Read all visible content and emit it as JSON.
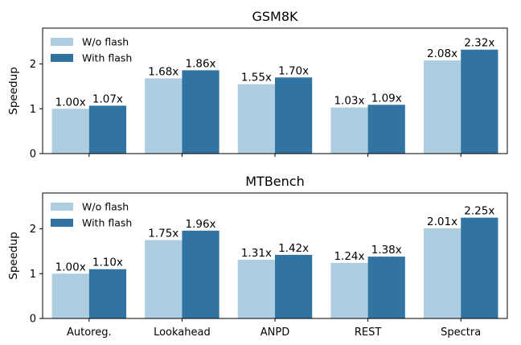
{
  "chart_data": [
    {
      "type": "bar",
      "title": "GSM8K",
      "xlabel": "",
      "ylabel": "Speedup",
      "ylim": [
        0,
        2.8
      ],
      "yticks": [
        "0",
        "1",
        "2"
      ],
      "show_xticklabels": false,
      "categories": [
        "Autoreg.",
        "Lookahead",
        "ANPD",
        "REST",
        "Spectra"
      ],
      "legend": "top-left",
      "grid": false,
      "series": [
        {
          "name": "W/o flash",
          "color": "#aecde1",
          "values": [
            1.0,
            1.68,
            1.55,
            1.03,
            2.08
          ],
          "labels": [
            "1.00x",
            "1.68x",
            "1.55x",
            "1.03x",
            "2.08x"
          ]
        },
        {
          "name": "With flash",
          "color": "#3274a1",
          "values": [
            1.07,
            1.86,
            1.7,
            1.09,
            2.32
          ],
          "labels": [
            "1.07x",
            "1.86x",
            "1.70x",
            "1.09x",
            "2.32x"
          ]
        }
      ]
    },
    {
      "type": "bar",
      "title": "MTBench",
      "xlabel": "",
      "ylabel": "Speedup",
      "ylim": [
        0,
        2.8
      ],
      "yticks": [
        "0",
        "1",
        "2"
      ],
      "show_xticklabels": true,
      "categories": [
        "Autoreg.",
        "Lookahead",
        "ANPD",
        "REST",
        "Spectra"
      ],
      "legend": "top-left",
      "grid": false,
      "series": [
        {
          "name": "W/o flash",
          "color": "#aecde1",
          "values": [
            1.0,
            1.75,
            1.31,
            1.24,
            2.01
          ],
          "labels": [
            "1.00x",
            "1.75x",
            "1.31x",
            "1.24x",
            "2.01x"
          ]
        },
        {
          "name": "With flash",
          "color": "#3274a1",
          "values": [
            1.1,
            1.96,
            1.42,
            1.38,
            2.25
          ],
          "labels": [
            "1.10x",
            "1.96x",
            "1.42x",
            "1.38x",
            "2.25x"
          ]
        }
      ]
    }
  ]
}
